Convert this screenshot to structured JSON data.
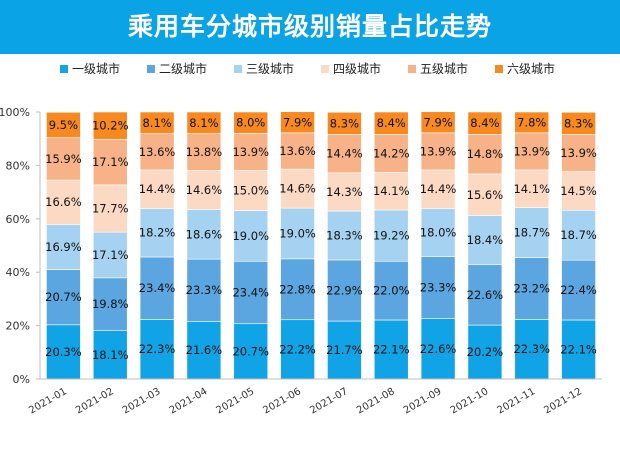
{
  "chart_data": {
    "type": "bar",
    "stacked": true,
    "percent": true,
    "title": "乘用车分城市级别销量占比走势",
    "categories": [
      "2021-01",
      "2021-02",
      "2021-03",
      "2021-04",
      "2021-05",
      "2021-06",
      "2021-07",
      "2021-08",
      "2021-09",
      "2021-10",
      "2021-11",
      "2021-12"
    ],
    "ylim": [
      0,
      100
    ],
    "yticks": [
      "0%",
      "20%",
      "40%",
      "60%",
      "80%",
      "100%"
    ],
    "grid": false,
    "legend_position": "top",
    "series": [
      {
        "name": "一级城市",
        "color": "#10a3e6",
        "values": [
          20.3,
          18.1,
          22.3,
          21.6,
          20.7,
          22.2,
          21.7,
          22.1,
          22.6,
          20.2,
          22.3,
          22.1
        ]
      },
      {
        "name": "二级城市",
        "color": "#5ba6e0",
        "values": [
          20.7,
          19.8,
          23.4,
          23.3,
          23.4,
          22.8,
          22.9,
          22.0,
          23.3,
          22.6,
          23.2,
          22.4
        ]
      },
      {
        "name": "三级城市",
        "color": "#a6d2f1",
        "values": [
          16.9,
          17.1,
          18.2,
          18.6,
          19.0,
          19.0,
          18.3,
          19.2,
          18.0,
          18.4,
          18.7,
          18.7
        ]
      },
      {
        "name": "四级城市",
        "color": "#fbd9c2",
        "values": [
          16.6,
          17.7,
          14.4,
          14.6,
          15.0,
          14.6,
          14.3,
          14.1,
          14.4,
          15.6,
          14.1,
          14.5
        ]
      },
      {
        "name": "五级城市",
        "color": "#f7b387",
        "values": [
          15.9,
          17.1,
          13.6,
          13.8,
          13.9,
          13.6,
          14.4,
          14.2,
          13.9,
          14.8,
          13.9,
          13.9
        ]
      },
      {
        "name": "六级城市",
        "color": "#f7891f",
        "values": [
          9.5,
          10.2,
          8.1,
          8.1,
          8.0,
          7.9,
          8.3,
          8.4,
          7.9,
          8.4,
          7.8,
          8.3
        ]
      }
    ]
  }
}
